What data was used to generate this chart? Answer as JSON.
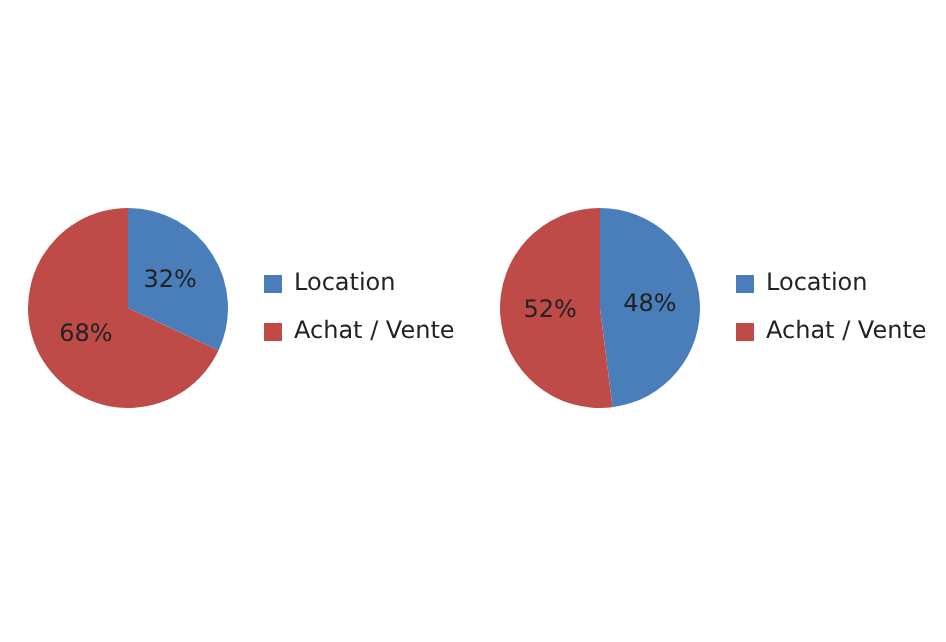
{
  "chart_data": [
    {
      "type": "pie",
      "categories": [
        "Location",
        "Achat / Vente"
      ],
      "values": [
        32,
        68
      ],
      "colors": [
        "#4a7ebb",
        "#be4b48"
      ],
      "value_labels": [
        "32%",
        "68%"
      ],
      "legend": "right"
    },
    {
      "type": "pie",
      "categories": [
        "Location",
        "Achat / Vente"
      ],
      "values": [
        48,
        52
      ],
      "colors": [
        "#4a7ebb",
        "#be4b48"
      ],
      "value_labels": [
        "48%",
        "52%"
      ],
      "legend": "right"
    }
  ]
}
